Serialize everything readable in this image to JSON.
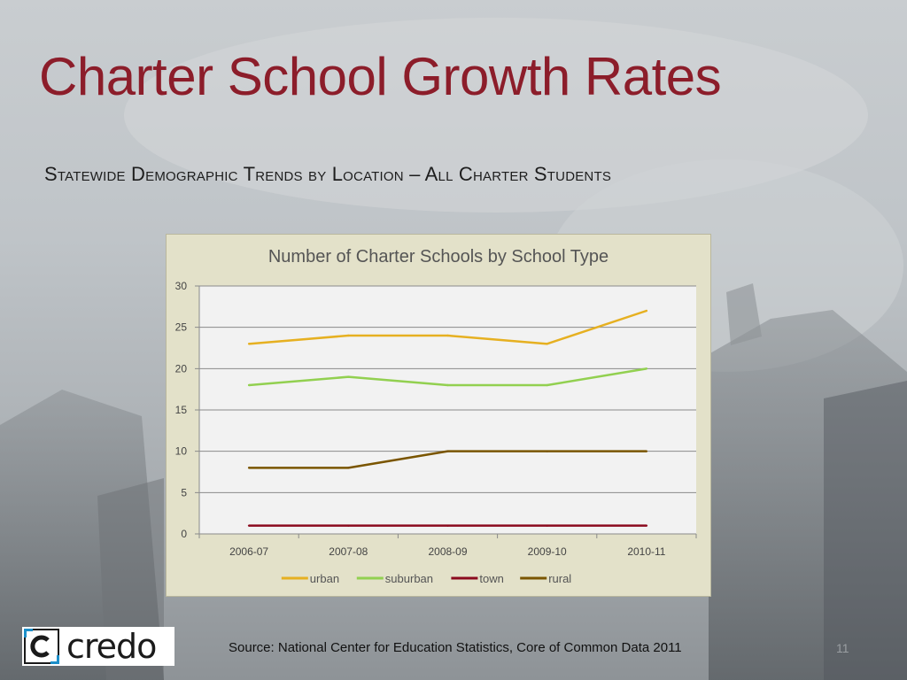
{
  "slide": {
    "title": "Charter School Growth Rates",
    "subtitle": "Statewide Demographic Trends by Location – All Charter Students",
    "source": "Source:  National Center for Education Statistics, Core of Common Data 2011",
    "page_number": "11"
  },
  "logo": {
    "text": "credo",
    "mark_letter": "C"
  },
  "colors": {
    "title": "#8c1d2a",
    "chart_bg": "#e3e1c9",
    "plot_bg": "#f2f2f2",
    "urban": "#e6b021",
    "suburban": "#92d050",
    "town": "#8b0a1e",
    "rural": "#7a5500"
  },
  "chart_data": {
    "type": "line",
    "title": "Number of Charter Schools by School Type",
    "categories": [
      "2006-07",
      "2007-08",
      "2008-09",
      "2009-10",
      "2010-11"
    ],
    "series": [
      {
        "name": "urban",
        "values": [
          23,
          24,
          24,
          23,
          27
        ]
      },
      {
        "name": "suburban",
        "values": [
          18,
          19,
          18,
          18,
          20
        ]
      },
      {
        "name": "town",
        "values": [
          1,
          1,
          1,
          1,
          1
        ]
      },
      {
        "name": "rural",
        "values": [
          8,
          8,
          10,
          10,
          10
        ]
      }
    ],
    "ylim": [
      0,
      30
    ],
    "yticks": [
      0,
      5,
      10,
      15,
      20,
      25,
      30
    ],
    "xlabel": "",
    "ylabel": "",
    "grid": true,
    "legend": "bottom"
  }
}
